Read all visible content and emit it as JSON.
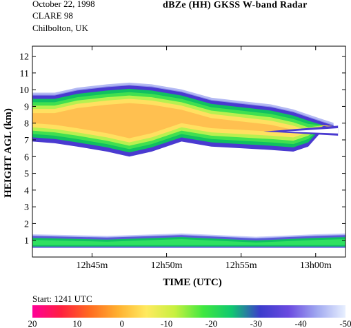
{
  "header": {
    "date": "October 22, 1998",
    "campaign": "CLARE 98",
    "location": "Chilbolton, UK"
  },
  "start_label": "Start: 1241 UTC",
  "chart_data": {
    "type": "heatmap",
    "title": "dBZe (HH)   GKSS  W-band Radar",
    "xlabel": "TIME (UTC)",
    "ylabel": "HEIGHT AGL (km)",
    "x_start_minutes": "12h41m",
    "xlim": [
      "12h41m",
      "13h02m"
    ],
    "x_ticks": [
      {
        "label": "12h45m",
        "minute": 45
      },
      {
        "label": "12h50m",
        "minute": 50
      },
      {
        "label": "12h55m",
        "minute": 55
      },
      {
        "label": "13h00m",
        "minute": 60
      }
    ],
    "ylim": [
      0,
      12.6
    ],
    "y_ticks": [
      1,
      2,
      3,
      4,
      5,
      6,
      7,
      8,
      9,
      10,
      11,
      12
    ],
    "colorbar": {
      "labels": [
        "20",
        "10",
        "0",
        "-10",
        "-20",
        "-30",
        "-40",
        "-50"
      ],
      "range": [
        20,
        -50
      ],
      "colors": [
        "#ff0098",
        "#ff2040",
        "#ff6a20",
        "#ffb030",
        "#ffea60",
        "#c8f040",
        "#40e840",
        "#10c870",
        "#3c3ccc",
        "#6a4ae0",
        "#a0a8f0",
        "#e8f0ff"
      ]
    },
    "layers": [
      {
        "name": "upper",
        "profile": [
          {
            "minute": 41.0,
            "top": 9.7,
            "bottom": 6.9
          },
          {
            "minute": 42.5,
            "top": 9.7,
            "bottom": 6.8
          },
          {
            "minute": 44.0,
            "top": 10.0,
            "bottom": 6.6
          },
          {
            "minute": 46.0,
            "top": 10.2,
            "bottom": 6.3
          },
          {
            "minute": 47.5,
            "top": 10.3,
            "bottom": 6.0
          },
          {
            "minute": 49.0,
            "top": 10.2,
            "bottom": 6.3
          },
          {
            "minute": 51.0,
            "top": 9.9,
            "bottom": 6.9
          },
          {
            "minute": 53.0,
            "top": 9.4,
            "bottom": 6.6
          },
          {
            "minute": 55.0,
            "top": 9.2,
            "bottom": 6.5
          },
          {
            "minute": 57.0,
            "top": 9.0,
            "bottom": 6.4
          },
          {
            "minute": 58.5,
            "top": 8.7,
            "bottom": 6.3
          },
          {
            "minute": 59.5,
            "top": 8.4,
            "bottom": 6.6
          },
          {
            "minute": 60.5,
            "top": 8.1,
            "bottom": 7.6
          },
          {
            "minute": 61.2,
            "top": 7.9,
            "bottom": 7.7
          }
        ],
        "notch": {
          "minute_start": 56.5,
          "minute_end": 61.5,
          "height": 7.5
        }
      },
      {
        "name": "lower",
        "profile": [
          {
            "minute": 41.0,
            "top": 1.3,
            "bottom": 0.55
          },
          {
            "minute": 46.0,
            "top": 1.2,
            "bottom": 0.55
          },
          {
            "minute": 51.0,
            "top": 1.35,
            "bottom": 0.55
          },
          {
            "minute": 56.0,
            "top": 1.15,
            "bottom": 0.55
          },
          {
            "minute": 60.0,
            "top": 1.3,
            "bottom": 0.55
          },
          {
            "minute": 62.0,
            "top": 1.35,
            "bottom": 0.55
          }
        ]
      }
    ]
  }
}
